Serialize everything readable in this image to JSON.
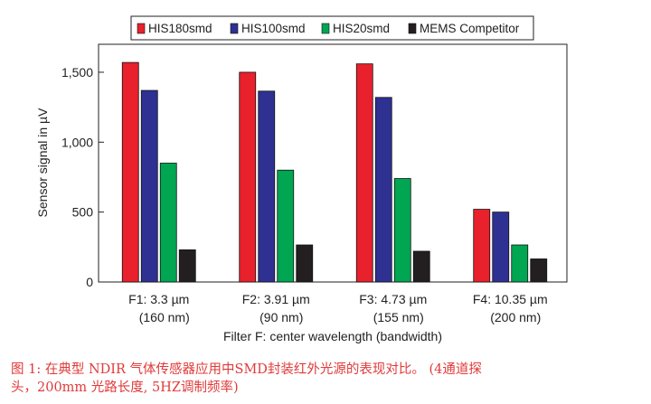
{
  "chart_data": {
    "type": "bar",
    "title": "",
    "xlabel": "Filter F: center wavelength (bandwidth)",
    "ylabel": "Sensor signal in µV",
    "ylim": [
      0,
      1700
    ],
    "yticks": [
      0,
      500,
      1000,
      1500
    ],
    "ytick_labels": [
      "0",
      "500",
      "1,000",
      "1,500"
    ],
    "grid": false,
    "legend_position": "top",
    "categories": [
      [
        "F1: 3.3 µm",
        "(160 nm)"
      ],
      [
        "F2: 3.91 µm",
        "(90 nm)"
      ],
      [
        "F3: 4.73 µm",
        "(155 nm)"
      ],
      [
        "F4: 10.35 µm",
        "(200 nm)"
      ]
    ],
    "series": [
      {
        "name": "HIS180smd",
        "color": "#e8212d",
        "values": [
          1570,
          1500,
          1560,
          520
        ]
      },
      {
        "name": "HIS100smd",
        "color": "#2e3192",
        "values": [
          1370,
          1365,
          1320,
          500
        ]
      },
      {
        "name": "HIS20smd",
        "color": "#00a651",
        "values": [
          850,
          800,
          740,
          265
        ]
      },
      {
        "name": "MEMS Competitor",
        "color": "#231f20",
        "values": [
          230,
          265,
          220,
          165
        ]
      }
    ]
  },
  "caption": {
    "line1": "图 1: 在典型 NDIR 气体传感器应用中SMD封装红外光源的表现对比。 (4通道探",
    "line2": "头，200mm 光路长度, 5HZ调制频率)"
  }
}
